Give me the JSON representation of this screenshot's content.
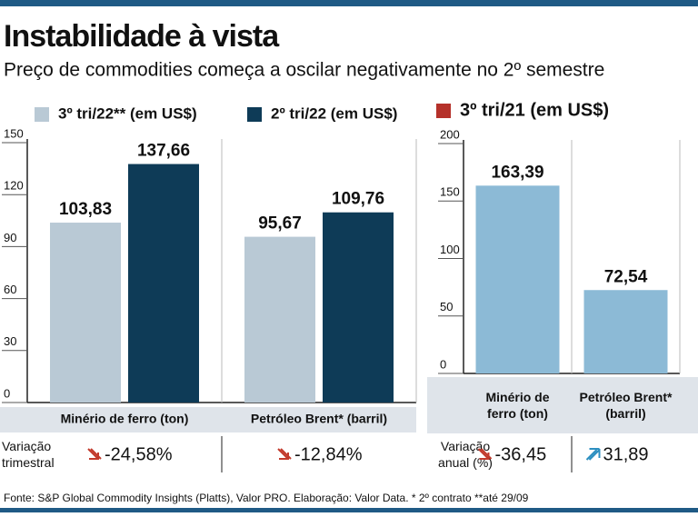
{
  "header": {
    "title": "Instabilidade à vista",
    "subtitle": "Preço de commodities começa a oscilar negativamente no 2º semestre"
  },
  "chart_data": [
    {
      "type": "bar",
      "categories": [
        "Minério de ferro (ton)",
        "Petróleo Brent* (barril)"
      ],
      "series": [
        {
          "name": "3º tri/22** (em US$)",
          "color": "#b9c9d5",
          "values": [
            103.83,
            95.67
          ],
          "value_labels": [
            "103,83",
            "95,67"
          ]
        },
        {
          "name": "2º tri/22 (em US$)",
          "color": "#0e3b57",
          "values": [
            137.66,
            109.76
          ],
          "value_labels": [
            "137,66",
            "109,76"
          ]
        }
      ],
      "ylim": [
        0,
        150
      ],
      "yticks": [
        0,
        30,
        60,
        90,
        120,
        150
      ],
      "grid": false,
      "variation": {
        "label": "Variação trimestral",
        "values": [
          -24.58,
          -12.84
        ],
        "value_labels": [
          "-24,58%",
          "-12,84%"
        ]
      }
    },
    {
      "type": "bar",
      "categories": [
        "Minério de ferro (ton)",
        "Petróleo Brent* (barril)"
      ],
      "series": [
        {
          "name": "3º tri/21 (em US$)",
          "color": "#8cbad6",
          "legend_color": "#b5312a",
          "values": [
            163.39,
            72.54
          ],
          "value_labels": [
            "163,39",
            "72,54"
          ]
        }
      ],
      "ylim": [
        0,
        200
      ],
      "yticks": [
        0,
        50,
        100,
        150,
        200
      ],
      "grid": false,
      "variation": {
        "label": "Variação anual (%)",
        "values": [
          -36.45,
          31.89
        ],
        "value_labels": [
          "-36,45",
          "31,89"
        ]
      }
    }
  ],
  "source": "Fonte: S&P Global Commodity Insights (Platts), Valor PRO. Elaboração: Valor Data. * 2º contrato **até 29/09"
}
